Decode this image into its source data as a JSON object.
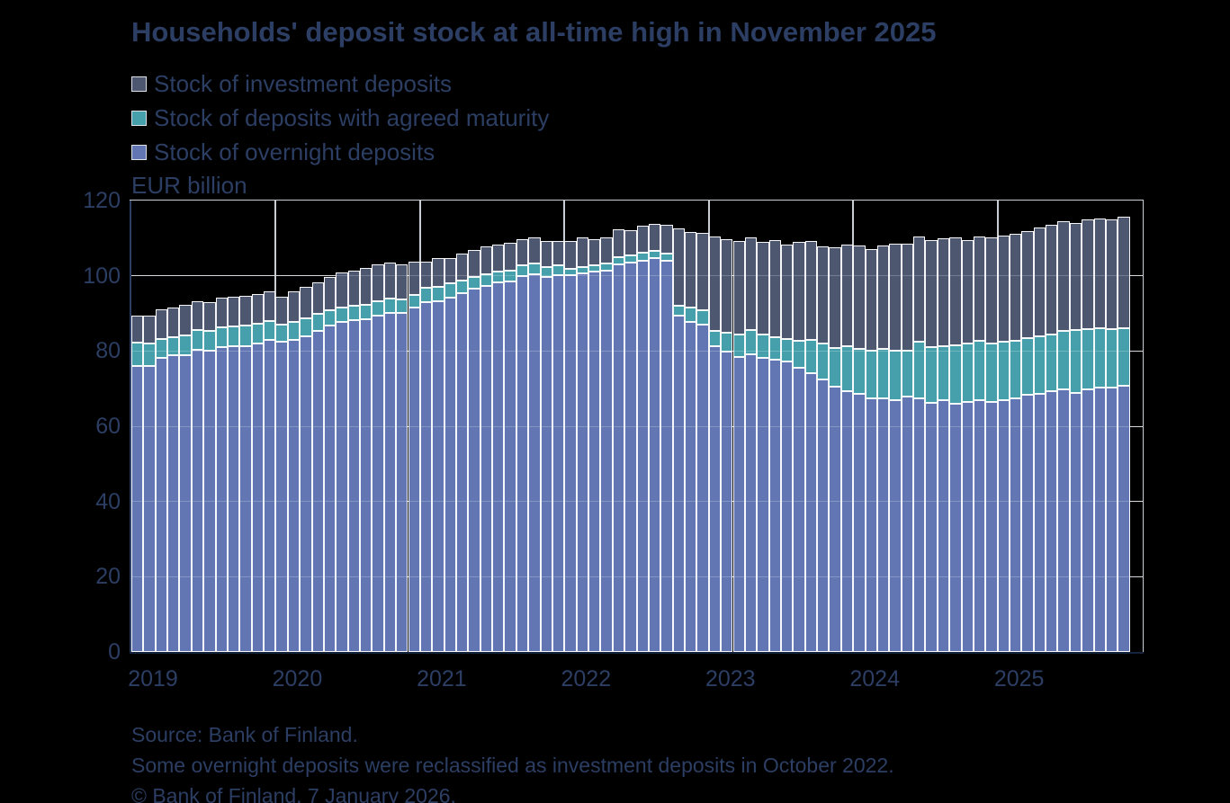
{
  "title": "Households' deposit stock at all-time high in November 2025",
  "legend": [
    {
      "label": "Stock of investment deposits",
      "color": "#4d5870"
    },
    {
      "label": "Stock of deposits with agreed maturity",
      "color": "#46a0ac"
    },
    {
      "label": "Stock of overnight deposits",
      "color": "#6276b3"
    }
  ],
  "axis_title": "EUR billion",
  "footnotes": [
    "Source: Bank of Finland.",
    "Some overnight deposits were reclassified as investment deposits in October 2022.",
    "© Bank of Finland, 7 January 2026."
  ],
  "colors": {
    "background": "#000000",
    "text": "#2c3e63",
    "grid": "#c9cdd4",
    "bar_outline": "#ffffff"
  },
  "chart_data": {
    "type": "bar",
    "stacked": true,
    "unit": "EUR billion",
    "ylim": [
      0,
      120
    ],
    "yticks": [
      0,
      20,
      40,
      60,
      80,
      100,
      120
    ],
    "grid": true,
    "legend_position": "top-left",
    "x_tick_years": [
      "2019",
      "2020",
      "2021",
      "2022",
      "2023",
      "2024",
      "2025"
    ],
    "months": [
      "2019-01",
      "2019-02",
      "2019-03",
      "2019-04",
      "2019-05",
      "2019-06",
      "2019-07",
      "2019-08",
      "2019-09",
      "2019-10",
      "2019-11",
      "2019-12",
      "2020-01",
      "2020-02",
      "2020-03",
      "2020-04",
      "2020-05",
      "2020-06",
      "2020-07",
      "2020-08",
      "2020-09",
      "2020-10",
      "2020-11",
      "2020-12",
      "2021-01",
      "2021-02",
      "2021-03",
      "2021-04",
      "2021-05",
      "2021-06",
      "2021-07",
      "2021-08",
      "2021-09",
      "2021-10",
      "2021-11",
      "2021-12",
      "2022-01",
      "2022-02",
      "2022-03",
      "2022-04",
      "2022-05",
      "2022-06",
      "2022-07",
      "2022-08",
      "2022-09",
      "2022-10",
      "2022-11",
      "2022-12",
      "2023-01",
      "2023-02",
      "2023-03",
      "2023-04",
      "2023-05",
      "2023-06",
      "2023-07",
      "2023-08",
      "2023-09",
      "2023-10",
      "2023-11",
      "2023-12",
      "2024-01",
      "2024-02",
      "2024-03",
      "2024-04",
      "2024-05",
      "2024-06",
      "2024-07",
      "2024-08",
      "2024-09",
      "2024-10",
      "2024-11",
      "2024-12",
      "2025-01",
      "2025-02",
      "2025-03",
      "2025-04",
      "2025-05",
      "2025-06",
      "2025-07",
      "2025-08",
      "2025-09",
      "2025-10",
      "2025-11"
    ],
    "series": [
      {
        "name": "Stock of overnight deposits",
        "color": "#6276b3",
        "values": [
          76.0,
          76.0,
          78.2,
          79.0,
          79.0,
          80.3,
          80.0,
          81.0,
          81.3,
          81.3,
          82.0,
          83.0,
          82.4,
          83.0,
          84.0,
          85.3,
          86.7,
          87.7,
          88.2,
          88.5,
          89.5,
          90.1,
          90.1,
          91.5,
          93.0,
          93.3,
          94.1,
          95.5,
          96.5,
          97.4,
          98.2,
          98.4,
          100.0,
          100.4,
          99.8,
          100.2,
          100.2,
          100.6,
          101.2,
          101.4,
          103.0,
          103.4,
          104.0,
          104.6,
          104.0,
          89.3,
          87.7,
          87.1,
          81.2,
          79.8,
          78.4,
          79.2,
          78.1,
          77.6,
          77.2,
          75.6,
          74.0,
          72.4,
          70.5,
          69.4,
          68.5,
          67.3,
          67.5,
          67.0,
          67.9,
          67.5,
          66.3,
          66.9,
          66.0,
          66.5,
          67.0,
          66.5,
          67.0,
          67.3,
          68.3,
          68.6,
          69.3,
          69.7,
          68.9,
          69.9,
          70.2,
          70.2,
          70.7
        ]
      },
      {
        "name": "Stock of deposits with agreed maturity",
        "color": "#46a0ac",
        "values": [
          6.2,
          6.0,
          5.0,
          4.7,
          5.2,
          5.2,
          5.3,
          5.3,
          5.3,
          5.5,
          5.3,
          5.0,
          4.5,
          4.7,
          4.7,
          4.5,
          4.2,
          3.8,
          3.9,
          3.8,
          3.7,
          3.8,
          3.6,
          3.5,
          3.8,
          3.7,
          3.8,
          3.3,
          3.2,
          3.1,
          3.0,
          3.0,
          2.9,
          2.8,
          2.6,
          2.7,
          1.7,
          1.8,
          1.6,
          1.8,
          2.0,
          2.0,
          2.2,
          2.1,
          1.9,
          2.8,
          3.8,
          3.7,
          4.1,
          5.0,
          6.0,
          6.3,
          6.3,
          6.1,
          6.0,
          7.2,
          8.9,
          9.7,
          10.3,
          11.8,
          12.1,
          12.9,
          13.1,
          13.0,
          12.3,
          14.9,
          14.7,
          14.4,
          15.6,
          15.5,
          15.8,
          15.6,
          15.4,
          15.5,
          15.1,
          15.4,
          15.2,
          15.6,
          16.6,
          15.9,
          15.8,
          15.6,
          15.4
        ]
      },
      {
        "name": "Stock of investment deposits",
        "color": "#4d5870",
        "values": [
          7.3,
          7.3,
          7.9,
          7.8,
          8.1,
          7.8,
          7.6,
          7.8,
          7.8,
          7.8,
          7.9,
          7.8,
          7.6,
          8.2,
          8.4,
          8.4,
          8.7,
          9.4,
          9.3,
          9.7,
          9.8,
          9.5,
          9.3,
          8.8,
          7.0,
          7.6,
          6.9,
          7.2,
          7.1,
          7.4,
          7.2,
          7.3,
          6.9,
          7.1,
          6.8,
          6.4,
          7.4,
          7.7,
          7.0,
          7.0,
          7.3,
          6.6,
          7.1,
          7.2,
          7.7,
          20.4,
          20.2,
          20.7,
          25.2,
          25.0,
          24.9,
          24.8,
          24.7,
          25.9,
          25.2,
          26.1,
          26.4,
          25.7,
          26.7,
          27.1,
          27.4,
          26.8,
          27.4,
          28.6,
          28.4,
          28.0,
          28.4,
          28.6,
          28.5,
          27.6,
          27.7,
          28.0,
          28.3,
          28.4,
          28.5,
          28.9,
          29.1,
          29.2,
          28.5,
          29.3,
          29.3,
          29.1,
          29.6
        ]
      }
    ]
  }
}
